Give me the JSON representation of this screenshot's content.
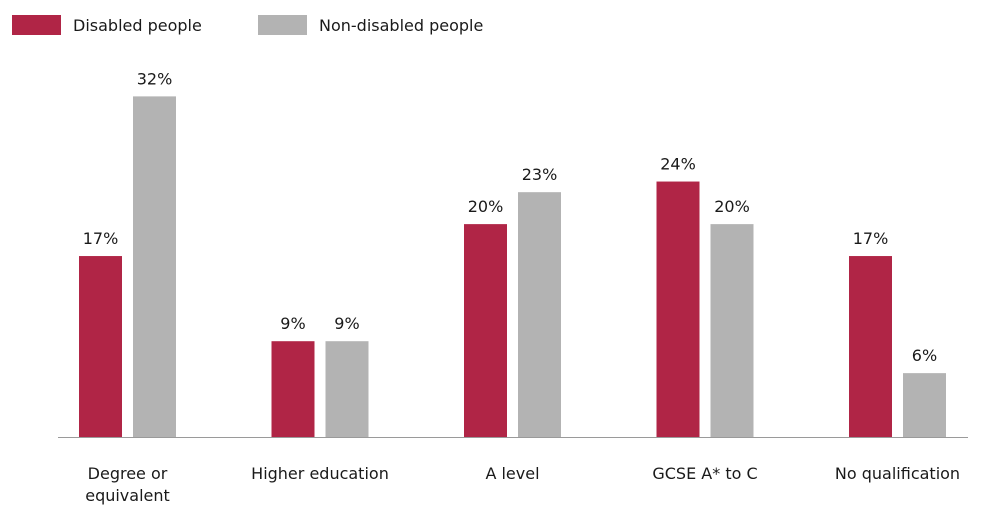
{
  "chart_data": {
    "type": "bar",
    "title": "",
    "xlabel": "",
    "ylabel": "",
    "ylim": [
      0,
      32.6
    ],
    "grid": false,
    "legend_position": "top-left",
    "categories": [
      [
        "Degree or",
        "equivalent"
      ],
      [
        "Higher education"
      ],
      [
        "A level"
      ],
      [
        "GCSE A* to C"
      ],
      [
        "No qualification"
      ]
    ],
    "series": [
      {
        "name": "Disabled people",
        "color": "#b02546",
        "values": [
          17,
          9,
          20,
          24,
          17
        ],
        "labels": [
          "17%",
          "9%",
          "20%",
          "24%",
          "17%"
        ]
      },
      {
        "name": "Non-disabled people",
        "color": "#b3b3b3",
        "values": [
          32,
          9,
          23,
          20,
          6
        ],
        "labels": [
          "32%",
          "9%",
          "23%",
          "20%",
          "6%"
        ]
      }
    ]
  }
}
